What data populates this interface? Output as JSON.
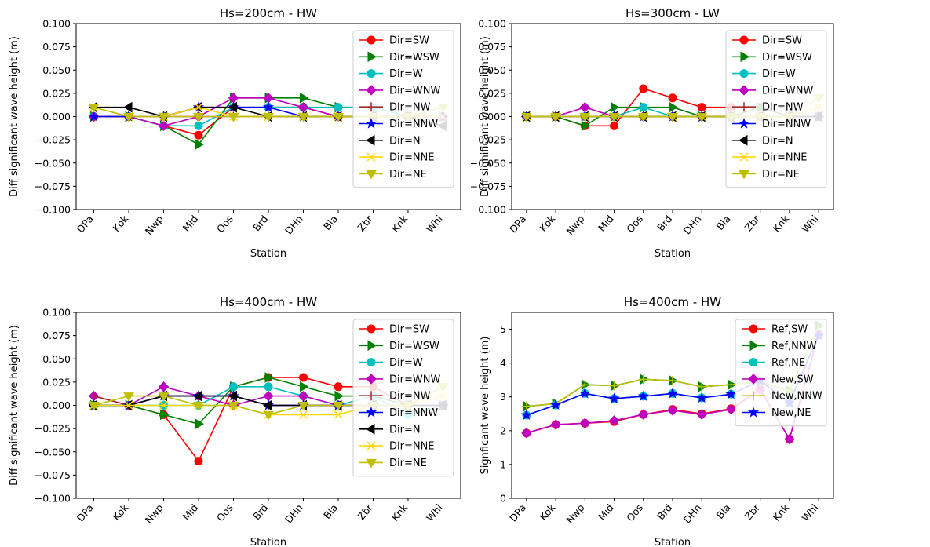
{
  "chart_data": [
    {
      "type": "line",
      "title": "Hs=200cm - HW",
      "xlabel": "Station",
      "ylabel": "Diff significant wave height (m)",
      "categories": [
        "DPa",
        "Kok",
        "Nwp",
        "Mid",
        "Oos",
        "Brd",
        "DHn",
        "Bla",
        "Zbr",
        "Knk",
        "Whi"
      ],
      "ylim": [
        -0.1,
        0.1
      ],
      "yticks": [
        "0.100",
        "0.075",
        "0.050",
        "0.025",
        "0.000",
        "−0.025",
        "−0.050",
        "−0.075",
        "−0.100"
      ],
      "legend_position": "upper right",
      "series": [
        {
          "name": "Dir=SW",
          "color": "#ff0000",
          "marker": "circle",
          "values": [
            0,
            0,
            -0.01,
            -0.02,
            0.01,
            0.01,
            0.01,
            0,
            0,
            0,
            0
          ]
        },
        {
          "name": "Dir=WSW",
          "color": "#008000",
          "marker": "tri-right",
          "values": [
            0,
            0,
            -0.01,
            -0.03,
            0.02,
            0.02,
            0.02,
            0.01,
            0.01,
            0,
            0
          ]
        },
        {
          "name": "Dir=W",
          "color": "#00bfbf",
          "marker": "circle",
          "values": [
            0,
            0,
            -0.01,
            -0.01,
            0.01,
            0.01,
            0.01,
            0.01,
            0.01,
            0,
            0
          ]
        },
        {
          "name": "Dir=WNW",
          "color": "#bf00bf",
          "marker": "diamond",
          "values": [
            0,
            0,
            -0.01,
            0,
            0.02,
            0.02,
            0.01,
            0,
            0,
            0,
            0
          ]
        },
        {
          "name": "Dir=NW",
          "color": "#a52a2a",
          "marker": "plus",
          "values": [
            0,
            0,
            0,
            0,
            0,
            0,
            0,
            0,
            0,
            0,
            0
          ]
        },
        {
          "name": "Dir=NNW",
          "color": "#0000ff",
          "marker": "star",
          "values": [
            0,
            0,
            0,
            0.01,
            0.01,
            0.01,
            0,
            0,
            0,
            0,
            0
          ]
        },
        {
          "name": "Dir=N",
          "color": "#000000",
          "marker": "tri-left",
          "values": [
            0.01,
            0.01,
            0,
            0.01,
            0.01,
            0,
            0,
            0,
            0,
            0,
            -0.01
          ]
        },
        {
          "name": "Dir=NNE",
          "color": "#ffd700",
          "marker": "x",
          "values": [
            0.01,
            0,
            0,
            0.01,
            0,
            0,
            0,
            0,
            0,
            0,
            0
          ]
        },
        {
          "name": "Dir=NE",
          "color": "#bfbf00",
          "marker": "tri-down",
          "values": [
            0.01,
            0,
            0,
            0,
            0,
            0,
            0,
            0,
            0,
            0,
            0.01
          ]
        }
      ]
    },
    {
      "type": "line",
      "title": "Hs=300cm - LW",
      "xlabel": "Station",
      "ylabel": "Diff significant wave height (m)",
      "categories": [
        "DPa",
        "Kok",
        "Nwp",
        "Mid",
        "Oos",
        "Brd",
        "DHn",
        "Bla",
        "Zbr",
        "Knk",
        "Whi"
      ],
      "ylim": [
        -0.1,
        0.1
      ],
      "yticks": [
        "0.100",
        "0.075",
        "0.050",
        "0.025",
        "0.000",
        "−0.025",
        "−0.050",
        "−0.075",
        "−0.100"
      ],
      "legend_position": "upper right",
      "series": [
        {
          "name": "Dir=SW",
          "color": "#ff0000",
          "marker": "circle",
          "values": [
            0,
            0,
            -0.01,
            -0.01,
            0.03,
            0.02,
            0.01,
            0.01,
            0.01,
            0,
            0
          ]
        },
        {
          "name": "Dir=WSW",
          "color": "#008000",
          "marker": "tri-right",
          "values": [
            0,
            0,
            -0.01,
            0.01,
            0.01,
            0.01,
            0,
            0,
            0.01,
            0,
            0
          ]
        },
        {
          "name": "Dir=W",
          "color": "#00bfbf",
          "marker": "circle",
          "values": [
            0,
            0,
            0,
            0,
            0.01,
            0,
            0,
            0,
            0,
            0,
            0
          ]
        },
        {
          "name": "Dir=WNW",
          "color": "#bf00bf",
          "marker": "diamond",
          "values": [
            0,
            0,
            0.01,
            0,
            0,
            0,
            0,
            0,
            0,
            0,
            0
          ]
        },
        {
          "name": "Dir=NW",
          "color": "#a52a2a",
          "marker": "plus",
          "values": [
            0,
            0,
            0,
            0,
            0,
            0,
            0,
            0,
            0,
            0,
            0
          ]
        },
        {
          "name": "Dir=NNW",
          "color": "#0000ff",
          "marker": "star",
          "values": [
            0,
            0,
            0,
            0,
            0,
            0,
            0,
            0,
            0,
            0,
            0
          ]
        },
        {
          "name": "Dir=N",
          "color": "#000000",
          "marker": "tri-left",
          "values": [
            0,
            0,
            0,
            0,
            0,
            0,
            0,
            0,
            0,
            0,
            0
          ]
        },
        {
          "name": "Dir=NNE",
          "color": "#ffd700",
          "marker": "x",
          "values": [
            0,
            0,
            0,
            0,
            0,
            0,
            0,
            0,
            0,
            0,
            0.01
          ]
        },
        {
          "name": "Dir=NE",
          "color": "#bfbf00",
          "marker": "tri-down",
          "values": [
            0,
            0,
            0,
            0,
            0,
            0,
            0,
            0,
            0,
            0,
            0.02
          ]
        }
      ]
    },
    {
      "type": "line",
      "title": "Hs=400cm - HW",
      "xlabel": "Station",
      "ylabel": "Diff significant wave height (m)",
      "categories": [
        "DPa",
        "Kok",
        "Nwp",
        "Mid",
        "Oos",
        "Brd",
        "DHn",
        "Bla",
        "Zbr",
        "Knk",
        "Whi"
      ],
      "ylim": [
        -0.1,
        0.1
      ],
      "yticks": [
        "0.100",
        "0.075",
        "0.050",
        "0.025",
        "0.000",
        "−0.025",
        "−0.050",
        "−0.075",
        "−0.100"
      ],
      "legend_position": "upper right",
      "series": [
        {
          "name": "Dir=SW",
          "color": "#ff0000",
          "marker": "circle",
          "values": [
            0,
            0,
            -0.01,
            -0.06,
            0.02,
            0.03,
            0.03,
            0.02,
            0.02,
            0,
            0
          ]
        },
        {
          "name": "Dir=WSW",
          "color": "#008000",
          "marker": "tri-right",
          "values": [
            0,
            0,
            -0.01,
            -0.02,
            0.02,
            0.03,
            0.02,
            0.01,
            0.01,
            0,
            0
          ]
        },
        {
          "name": "Dir=W",
          "color": "#00bfbf",
          "marker": "circle",
          "values": [
            0,
            0,
            0,
            0,
            0.02,
            0.02,
            0.01,
            0,
            0.01,
            -0.01,
            0
          ]
        },
        {
          "name": "Dir=WNW",
          "color": "#bf00bf",
          "marker": "diamond",
          "values": [
            0.01,
            0,
            0.02,
            0.01,
            0,
            0.01,
            0.01,
            0,
            0,
            0,
            0
          ]
        },
        {
          "name": "Dir=NW",
          "color": "#a52a2a",
          "marker": "plus",
          "values": [
            0.01,
            0,
            0.01,
            0.01,
            0.01,
            0,
            0,
            0,
            0,
            0,
            0
          ]
        },
        {
          "name": "Dir=NNW",
          "color": "#0000ff",
          "marker": "star",
          "values": [
            0,
            0,
            0.01,
            0.01,
            0.01,
            0,
            0,
            0,
            0,
            0,
            0
          ]
        },
        {
          "name": "Dir=N",
          "color": "#000000",
          "marker": "tri-left",
          "values": [
            0,
            0,
            0.01,
            0.01,
            0.01,
            0,
            0,
            0,
            0,
            0,
            0
          ]
        },
        {
          "name": "Dir=NNE",
          "color": "#ffd700",
          "marker": "x",
          "values": [
            0,
            0,
            0,
            0,
            0,
            -0.01,
            -0.01,
            -0.01,
            0,
            0,
            0.01
          ]
        },
        {
          "name": "Dir=NE",
          "color": "#bfbf00",
          "marker": "tri-down",
          "values": [
            0,
            0.01,
            0.01,
            0,
            0,
            -0.01,
            0,
            0,
            0,
            0,
            0.02
          ]
        }
      ]
    },
    {
      "type": "line",
      "title": "Hs=400cm - HW",
      "xlabel": "Station",
      "ylabel": "Signficant wave height (m)",
      "categories": [
        "DPa",
        "Kok",
        "Nwp",
        "Mid",
        "Oos",
        "Brd",
        "DHn",
        "Bla",
        "Zbr",
        "Knk",
        "Whi"
      ],
      "ylim": [
        0,
        5.5
      ],
      "yticks": [
        "5",
        "4",
        "3",
        "2",
        "1",
        "0"
      ],
      "legend_position": "upper right",
      "series": [
        {
          "name": "Ref,SW",
          "color": "#ff0000",
          "marker": "circle",
          "values": [
            1.93,
            2.18,
            2.22,
            2.27,
            2.48,
            2.63,
            2.5,
            2.65,
            3.22,
            1.75,
            4.85
          ]
        },
        {
          "name": "Ref,NNW",
          "color": "#008000",
          "marker": "tri-right",
          "values": [
            2.72,
            2.8,
            3.36,
            3.33,
            3.52,
            3.48,
            3.3,
            3.36,
            3.45,
            3.18,
            5.1
          ]
        },
        {
          "name": "Ref,NE",
          "color": "#00bfbf",
          "marker": "circle",
          "values": [
            2.46,
            2.76,
            3.1,
            2.95,
            3.02,
            3.1,
            2.97,
            3.08,
            3.48,
            2.83,
            4.85
          ]
        },
        {
          "name": "New,SW",
          "color": "#bf00bf",
          "marker": "diamond",
          "values": [
            1.93,
            2.18,
            2.22,
            2.3,
            2.48,
            2.6,
            2.48,
            2.63,
            3.22,
            1.75,
            4.85
          ]
        },
        {
          "name": "New,NNW",
          "color": "#bfbf00",
          "marker": "plus",
          "values": [
            2.72,
            2.8,
            3.36,
            3.33,
            3.52,
            3.48,
            3.3,
            3.36,
            3.45,
            3.18,
            5.1
          ]
        },
        {
          "name": "New,NE",
          "color": "#0000ff",
          "marker": "star",
          "values": [
            2.46,
            2.76,
            3.1,
            2.95,
            3.02,
            3.1,
            2.97,
            3.08,
            3.48,
            2.83,
            4.82
          ]
        }
      ]
    }
  ]
}
